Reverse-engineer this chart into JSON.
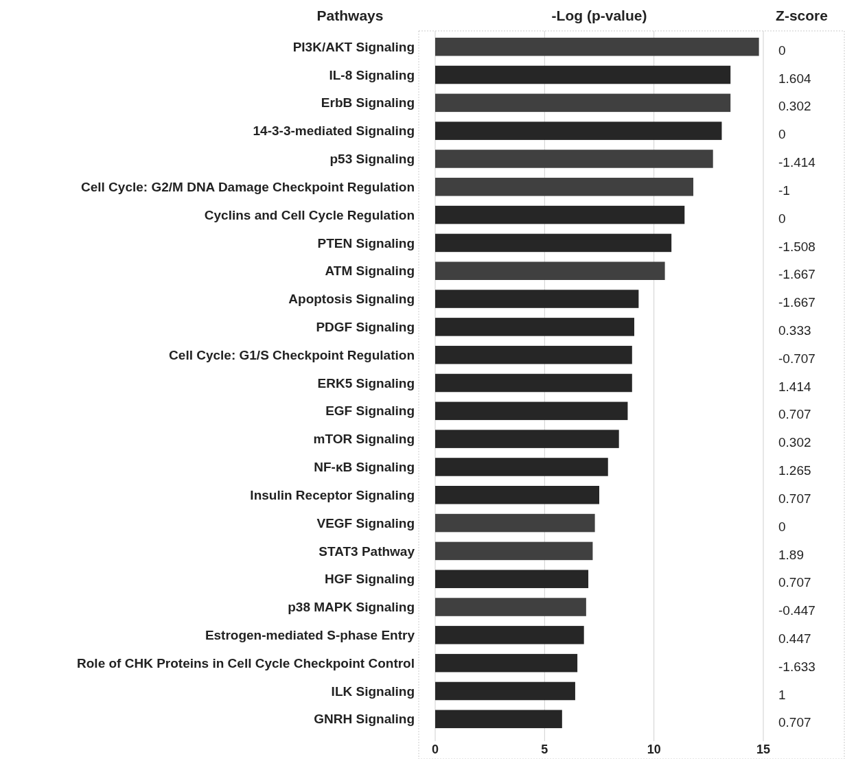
{
  "chart_data": {
    "type": "bar",
    "orientation": "horizontal",
    "xlabel": "-Log (p-value)",
    "ylabel": "Pathways",
    "categories": [
      "PI3K/AKT Signaling",
      "IL-8 Signaling",
      "ErbB Signaling",
      "14-3-3-mediated Signaling",
      "p53 Signaling",
      "Cell Cycle: G2/M DNA Damage Checkpoint Regulation",
      "Cyclins and Cell Cycle Regulation",
      "PTEN Signaling",
      "ATM Signaling",
      "Apoptosis Signaling",
      "PDGF Signaling",
      "Cell Cycle: G1/S Checkpoint Regulation",
      "ERK5 Signaling",
      "EGF Signaling",
      "mTOR Signaling",
      "NF-κB Signaling",
      "Insulin Receptor Signaling",
      "VEGF Signaling",
      "STAT3 Pathway",
      "HGF Signaling",
      "p38 MAPK Signaling",
      "Estrogen-mediated S-phase Entry",
      "Role of CHK Proteins in Cell Cycle Checkpoint Control",
      "ILK Signaling",
      "GNRH Signaling"
    ],
    "values": [
      14.8,
      13.5,
      13.5,
      13.1,
      12.7,
      11.8,
      11.4,
      10.8,
      10.5,
      9.3,
      9.1,
      9.0,
      9.0,
      8.8,
      8.4,
      7.9,
      7.5,
      7.3,
      7.2,
      7.0,
      6.9,
      6.8,
      6.5,
      6.4,
      5.8
    ],
    "colors": [
      "#404040",
      "#262626",
      "#404040",
      "#262626",
      "#404040",
      "#404040",
      "#262626",
      "#262626",
      "#404040",
      "#262626",
      "#262626",
      "#262626",
      "#262626",
      "#262626",
      "#262626",
      "#262626",
      "#262626",
      "#404040",
      "#404040",
      "#262626",
      "#404040",
      "#262626",
      "#262626",
      "#262626",
      "#262626"
    ],
    "xlim": [
      0,
      15
    ],
    "xticks": [
      0,
      5,
      10,
      15
    ],
    "grid": "x",
    "annotations": [
      "Z-score",
      "0",
      "1.604",
      "0.302",
      "0",
      "-1.414",
      "-1",
      "0",
      "-1.508",
      "-1.667",
      "-1.667",
      "0.333",
      "-0.707",
      "1.414",
      "0.707",
      "0.302",
      "1.265",
      "0.707",
      "0",
      "1.89",
      "0.707",
      "-0.447",
      "0.447",
      "-1.633",
      "1",
      "0.707"
    ]
  }
}
